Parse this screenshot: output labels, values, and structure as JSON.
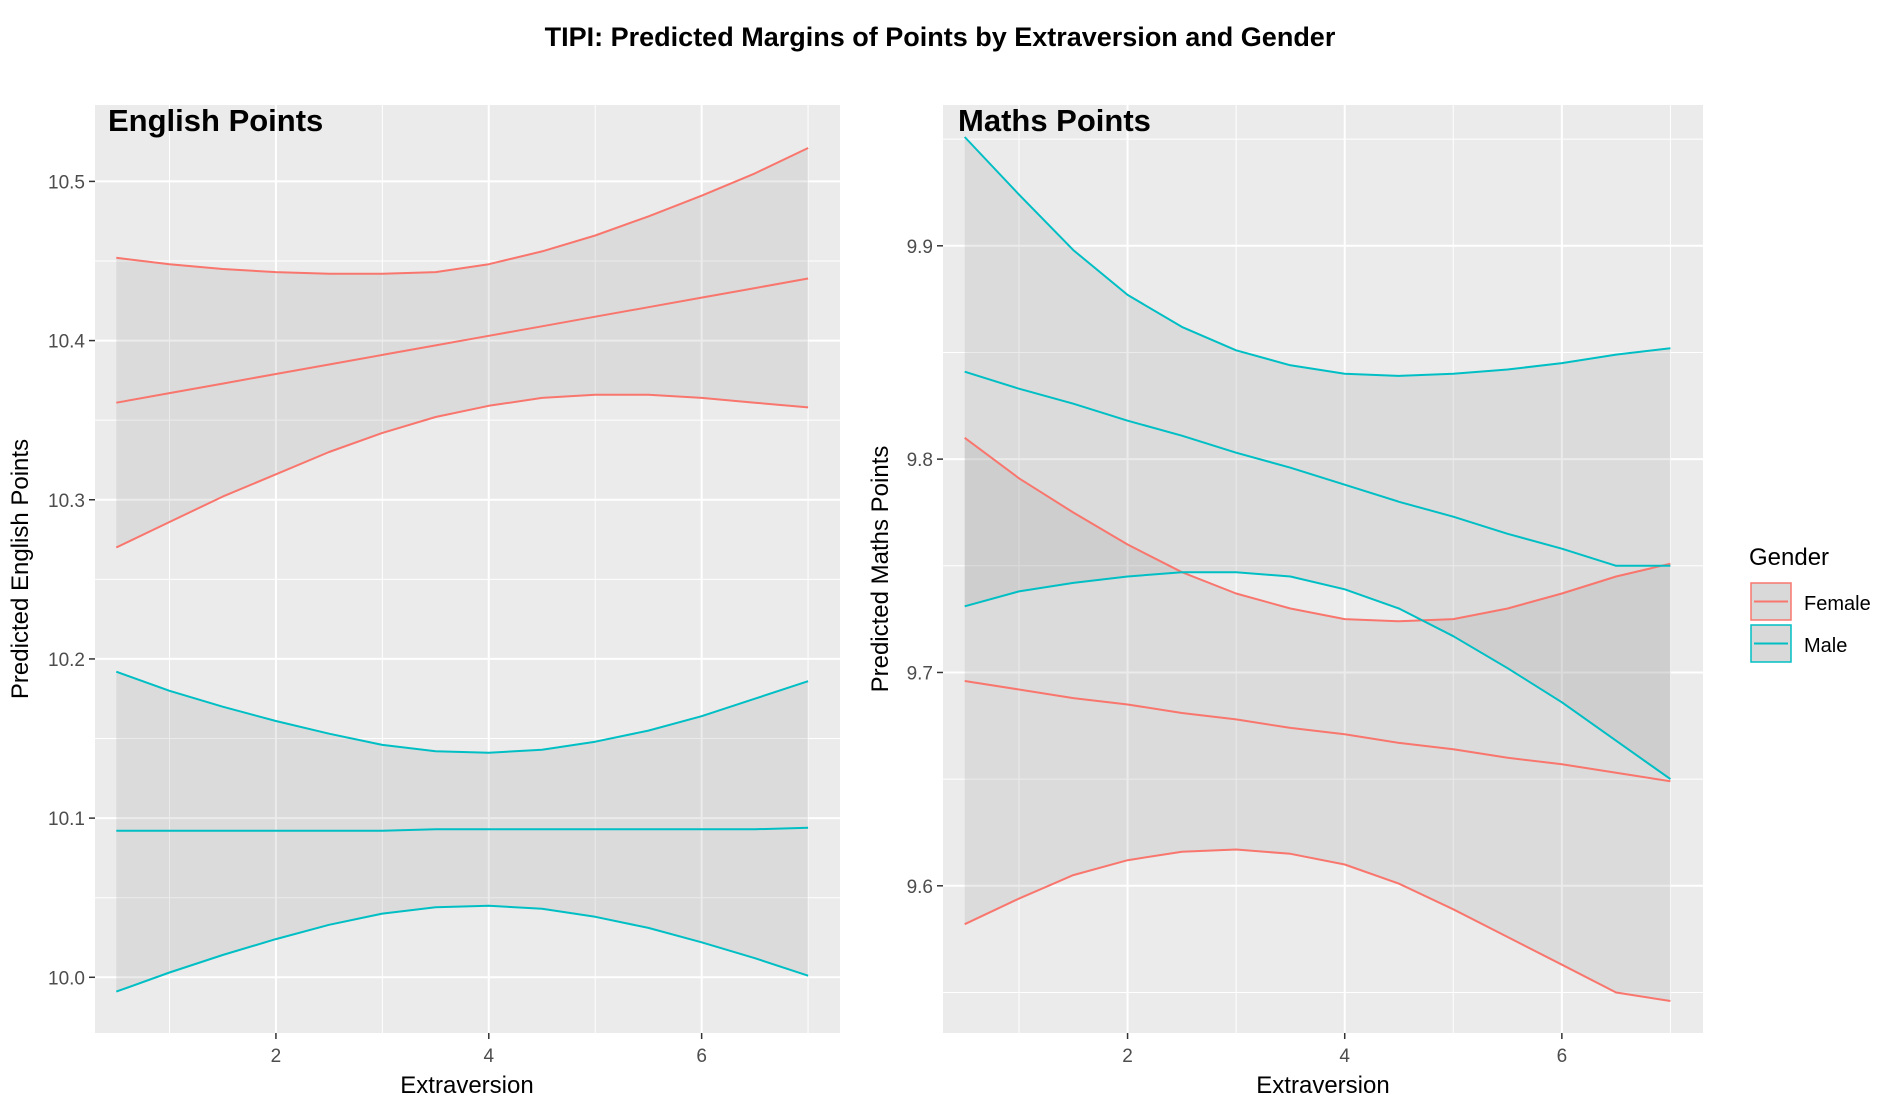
{
  "figure": {
    "title": "TIPI: Predicted Margins of Points by Extraversion and Gender"
  },
  "legend": {
    "title": "Gender",
    "placement": "right",
    "entries": [
      {
        "label": "Female",
        "color": "#F8766D"
      },
      {
        "label": "Male",
        "color": "#00BFC4"
      }
    ]
  },
  "chart_data": [
    {
      "type": "line",
      "panel_title": "English Points",
      "xlabel": "Extraversion",
      "ylabel": "Predicted English Points",
      "xlim": [
        0.3,
        7.3
      ],
      "ylim": [
        9.965,
        10.548
      ],
      "x_ticks": [
        2,
        4,
        6
      ],
      "x_tick_labels": [
        "2",
        "4",
        "6"
      ],
      "y_ticks": [
        10.0,
        10.1,
        10.2,
        10.3,
        10.4,
        10.5
      ],
      "y_tick_labels": [
        "10.0",
        "10.1",
        "10.2",
        "10.3",
        "10.4",
        "10.5"
      ],
      "grid": true,
      "series": [
        {
          "name": "Female",
          "color": "#F8766D",
          "x": [
            0.5,
            1,
            1.5,
            2,
            2.5,
            3,
            3.5,
            4,
            4.5,
            5,
            5.5,
            6,
            6.5,
            7
          ],
          "fit": [
            10.361,
            10.367,
            10.373,
            10.379,
            10.385,
            10.391,
            10.397,
            10.403,
            10.409,
            10.415,
            10.421,
            10.427,
            10.433,
            10.439
          ],
          "lower": [
            10.27,
            10.286,
            10.302,
            10.316,
            10.33,
            10.342,
            10.352,
            10.359,
            10.364,
            10.366,
            10.366,
            10.364,
            10.361,
            10.358
          ],
          "upper": [
            10.452,
            10.448,
            10.445,
            10.443,
            10.442,
            10.442,
            10.443,
            10.448,
            10.456,
            10.466,
            10.478,
            10.491,
            10.505,
            10.521
          ]
        },
        {
          "name": "Male",
          "color": "#00BFC4",
          "x": [
            0.5,
            1,
            1.5,
            2,
            2.5,
            3,
            3.5,
            4,
            4.5,
            5,
            5.5,
            6,
            6.5,
            7
          ],
          "fit": [
            10.092,
            10.092,
            10.092,
            10.092,
            10.092,
            10.092,
            10.093,
            10.093,
            10.093,
            10.093,
            10.093,
            10.093,
            10.093,
            10.094
          ],
          "lower": [
            9.991,
            10.003,
            10.014,
            10.024,
            10.033,
            10.04,
            10.044,
            10.045,
            10.043,
            10.038,
            10.031,
            10.022,
            10.012,
            10.001
          ],
          "upper": [
            10.192,
            10.18,
            10.17,
            10.161,
            10.153,
            10.146,
            10.142,
            10.141,
            10.143,
            10.148,
            10.155,
            10.164,
            10.175,
            10.186
          ]
        }
      ]
    },
    {
      "type": "line",
      "panel_title": "Maths Points",
      "xlabel": "Extraversion",
      "ylabel": "Predicted Maths Points",
      "xlim": [
        0.3,
        7.3
      ],
      "ylim": [
        9.531,
        9.966
      ],
      "x_ticks": [
        2,
        4,
        6
      ],
      "x_tick_labels": [
        "2",
        "4",
        "6"
      ],
      "y_ticks": [
        9.6,
        9.7,
        9.8,
        9.9
      ],
      "y_tick_labels": [
        "9.6",
        "9.7",
        "9.8",
        "9.9"
      ],
      "grid": true,
      "series": [
        {
          "name": "Female",
          "color": "#F8766D",
          "x": [
            0.5,
            1,
            1.5,
            2,
            2.5,
            3,
            3.5,
            4,
            4.5,
            5,
            5.5,
            6,
            6.5,
            7
          ],
          "fit": [
            9.696,
            9.692,
            9.688,
            9.685,
            9.681,
            9.678,
            9.674,
            9.671,
            9.667,
            9.664,
            9.66,
            9.657,
            9.653,
            9.649
          ],
          "lower": [
            9.582,
            9.594,
            9.605,
            9.612,
            9.616,
            9.617,
            9.615,
            9.61,
            9.601,
            9.589,
            9.576,
            9.563,
            9.55,
            9.546
          ],
          "upper": [
            9.81,
            9.791,
            9.775,
            9.76,
            9.747,
            9.737,
            9.73,
            9.725,
            9.724,
            9.725,
            9.73,
            9.737,
            9.745,
            9.751
          ]
        },
        {
          "name": "Male",
          "color": "#00BFC4",
          "x": [
            0.5,
            1,
            1.5,
            2,
            2.5,
            3,
            3.5,
            4,
            4.5,
            5,
            5.5,
            6,
            6.5,
            7
          ],
          "fit": [
            9.841,
            9.833,
            9.826,
            9.818,
            9.811,
            9.803,
            9.796,
            9.788,
            9.78,
            9.773,
            9.765,
            9.758,
            9.75,
            9.75
          ],
          "lower": [
            9.731,
            9.738,
            9.742,
            9.745,
            9.747,
            9.747,
            9.745,
            9.739,
            9.73,
            9.717,
            9.702,
            9.686,
            9.668,
            9.65
          ],
          "upper": [
            9.951,
            9.924,
            9.898,
            9.877,
            9.862,
            9.851,
            9.844,
            9.84,
            9.839,
            9.84,
            9.842,
            9.845,
            9.849,
            9.852
          ]
        }
      ]
    }
  ]
}
